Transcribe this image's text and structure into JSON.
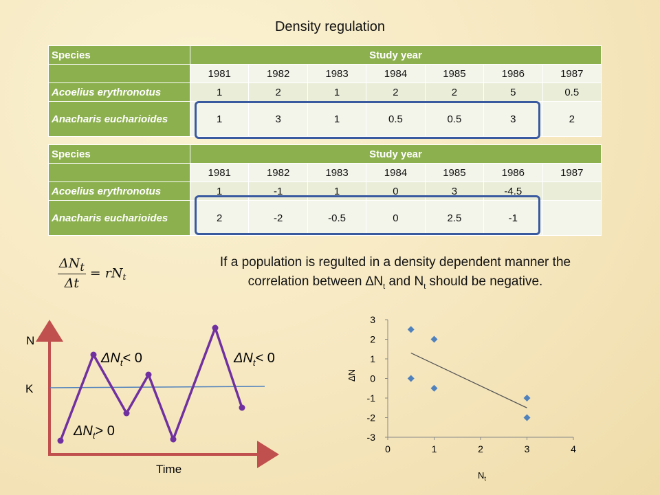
{
  "title": "Density regulation",
  "table1": {
    "col_species": "Species",
    "col_year": "Study year",
    "years": [
      "1981",
      "1982",
      "1983",
      "1984",
      "1985",
      "1986",
      "1987"
    ],
    "rows": [
      {
        "species": "Acoelius erythronotus",
        "values": [
          "1",
          "2",
          "1",
          "2",
          "2",
          "5",
          "0.5"
        ]
      },
      {
        "species": "Anacharis euchariοides",
        "values": [
          "1",
          "3",
          "1",
          "0.5",
          "0.5",
          "3",
          "2"
        ]
      }
    ]
  },
  "table2": {
    "col_species": "Species",
    "col_year": "Study year",
    "years": [
      "1981",
      "1982",
      "1983",
      "1984",
      "1985",
      "1986",
      "1987"
    ],
    "rows": [
      {
        "species": "Acoelius erythronotus",
        "values": [
          "1",
          "-1",
          "1",
          "0",
          "3",
          "-4.5",
          ""
        ]
      },
      {
        "species": "Anacharis euchariοides",
        "values": [
          "2",
          "-2",
          "-0.5",
          "0",
          "2.5",
          "-1",
          ""
        ]
      }
    ]
  },
  "equation": {
    "num": "ΔN",
    "num_sub": "t",
    "den": "Δt",
    "rhs": "= rN",
    "rhs_sub": "t"
  },
  "note": {
    "line1": "If a population is regulted in a density dependent manner the",
    "line2a": "correlation between ",
    "delta": "∆",
    "n": "N",
    "sub": "t",
    "and": " and N",
    "tail": " should be negative."
  },
  "sketch": {
    "y_label": "N",
    "k_label": "K",
    "x_label": "Time",
    "annotations": [
      "ΔN",
      "< 0",
      "ΔN",
      "< 0",
      "ΔN",
      "> 0"
    ],
    "sub": "t",
    "colors": {
      "axes": "#c0504d",
      "line": "#7030a0",
      "k_line": "#4f81bd"
    }
  },
  "chart_data": {
    "type": "scatter",
    "title": "",
    "xlabel": "N",
    "xlabel_sub": "t",
    "ylabel": "ΔN",
    "xlim": [
      0,
      4
    ],
    "ylim": [
      -3,
      3
    ],
    "xticks": [
      "0",
      "1",
      "2",
      "3",
      "4"
    ],
    "yticks": [
      "3",
      "2",
      "1",
      "0",
      "-1",
      "-2",
      "-3"
    ],
    "points": [
      {
        "x": 0.5,
        "y": 2.5
      },
      {
        "x": 1,
        "y": 2
      },
      {
        "x": 0.5,
        "y": 0
      },
      {
        "x": 1,
        "y": -0.5
      },
      {
        "x": 3,
        "y": -1
      },
      {
        "x": 3,
        "y": -2
      }
    ],
    "trendline": {
      "x1": 0.5,
      "y1": 1.3,
      "x2": 3,
      "y2": -1.5
    },
    "colors": {
      "marker": "#4f81bd",
      "trend": "#555555"
    },
    "grid": false
  }
}
